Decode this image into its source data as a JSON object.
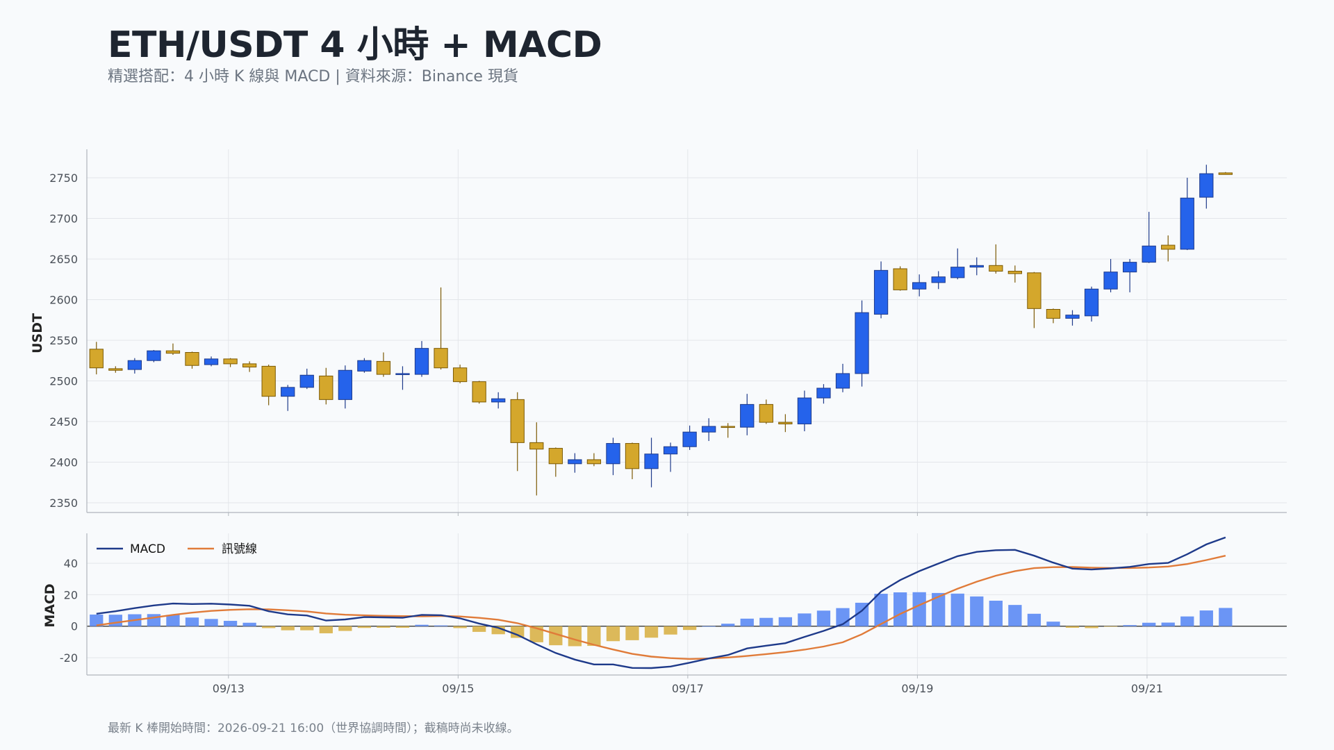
{
  "title": "ETH/USDT 4 小時 + MACD",
  "subtitle": "精選搭配：4 小時 K 線與 MACD | 資料來源：Binance 現貨",
  "footnote": "最新 K 棒開始時間：2026-09-21 16:00（世界協調時間）；截稿時尚未收線。",
  "colors": {
    "up": "#2563eb",
    "up_edge": "#1e3a8a",
    "down": "#d4a72c",
    "down_edge": "#7c5a05",
    "hist_pos": "#6b95f5",
    "hist_neg": "#dcb95a",
    "macd": "#1e3a8a",
    "signal": "#e07b39",
    "grid": "#e3e6ea",
    "axis": "#b0b5bc"
  },
  "chart_data": [
    {
      "type": "candlestick",
      "ylabel": "USDT",
      "ylim": [
        2338,
        2785
      ],
      "yticks": [
        2350,
        2400,
        2450,
        2500,
        2550,
        2600,
        2650,
        2700,
        2750
      ],
      "xlim": [
        -0.5,
        62.2
      ],
      "xticks": [
        {
          "label": "09/13",
          "at": 6.9
        },
        {
          "label": "09/15",
          "at": 18.9
        },
        {
          "label": "09/17",
          "at": 30.9
        },
        {
          "label": "09/19",
          "at": 42.9
        },
        {
          "label": "09/21",
          "at": 54.9
        }
      ],
      "candles": [
        [
          2539,
          2548,
          2508,
          2516
        ],
        [
          2515,
          2518,
          2510,
          2513
        ],
        [
          2514,
          2528,
          2509,
          2525
        ],
        [
          2525,
          2538,
          2523,
          2537
        ],
        [
          2537,
          2546,
          2532,
          2534
        ],
        [
          2535,
          2536,
          2515,
          2519
        ],
        [
          2520,
          2530,
          2518,
          2527
        ],
        [
          2527,
          2528,
          2517,
          2521
        ],
        [
          2521,
          2524,
          2511,
          2517
        ],
        [
          2518,
          2520,
          2470,
          2481
        ],
        [
          2481,
          2495,
          2463,
          2492
        ],
        [
          2492,
          2515,
          2490,
          2507
        ],
        [
          2506,
          2516,
          2471,
          2477
        ],
        [
          2477,
          2519,
          2466,
          2513
        ],
        [
          2512,
          2528,
          2510,
          2525
        ],
        [
          2524,
          2535,
          2505,
          2508
        ],
        [
          2509,
          2518,
          2489,
          2509
        ],
        [
          2508,
          2549,
          2505,
          2540
        ],
        [
          2540,
          2615,
          2514,
          2516
        ],
        [
          2516,
          2520,
          2497,
          2499
        ],
        [
          2499,
          2500,
          2472,
          2474
        ],
        [
          2474,
          2486,
          2466,
          2478
        ],
        [
          2477,
          2486,
          2389,
          2424
        ],
        [
          2424,
          2449,
          2359,
          2416
        ],
        [
          2417,
          2418,
          2382,
          2398
        ],
        [
          2398,
          2411,
          2387,
          2403
        ],
        [
          2403,
          2411,
          2395,
          2398
        ],
        [
          2398,
          2430,
          2384,
          2423
        ],
        [
          2423,
          2424,
          2379,
          2392
        ],
        [
          2392,
          2430,
          2369,
          2410
        ],
        [
          2410,
          2424,
          2388,
          2419
        ],
        [
          2419,
          2445,
          2415,
          2437
        ],
        [
          2437,
          2454,
          2426,
          2444
        ],
        [
          2444,
          2448,
          2430,
          2443
        ],
        [
          2443,
          2484,
          2433,
          2471
        ],
        [
          2471,
          2477,
          2447,
          2449
        ],
        [
          2449,
          2459,
          2437,
          2447
        ],
        [
          2447,
          2488,
          2438,
          2479
        ],
        [
          2479,
          2496,
          2472,
          2491
        ],
        [
          2491,
          2521,
          2486,
          2509
        ],
        [
          2509,
          2599,
          2493,
          2584
        ],
        [
          2582,
          2647,
          2577,
          2636
        ],
        [
          2638,
          2641,
          2611,
          2612
        ],
        [
          2613,
          2631,
          2604,
          2621
        ],
        [
          2621,
          2635,
          2613,
          2628
        ],
        [
          2627,
          2663,
          2625,
          2640
        ],
        [
          2640,
          2652,
          2630,
          2642
        ],
        [
          2642,
          2668,
          2632,
          2635
        ],
        [
          2635,
          2642,
          2621,
          2632
        ],
        [
          2633,
          2634,
          2565,
          2589
        ],
        [
          2588,
          2589,
          2571,
          2577
        ],
        [
          2577,
          2587,
          2568,
          2581
        ],
        [
          2580,
          2616,
          2573,
          2613
        ],
        [
          2613,
          2650,
          2609,
          2634
        ],
        [
          2634,
          2650,
          2609,
          2646
        ],
        [
          2646,
          2708,
          2645,
          2666
        ],
        [
          2667,
          2679,
          2647,
          2662
        ],
        [
          2662,
          2750,
          2661,
          2725
        ],
        [
          2726,
          2766,
          2712,
          2755
        ],
        [
          2756,
          2757,
          2754,
          2754
        ]
      ]
    },
    {
      "type": "line+bar",
      "ylabel": "MACD",
      "ylim": [
        -31,
        59
      ],
      "yticks": [
        -20,
        0,
        20,
        40
      ],
      "series": [
        {
          "name": "MACD",
          "values": [
            7.9,
            9.5,
            11.5,
            13.2,
            14.4,
            14.1,
            14.3,
            13.8,
            13,
            9.5,
            7.5,
            6.8,
            3.6,
            4.3,
            5.8,
            5.6,
            5.4,
            7.2,
            7,
            5,
            1.7,
            -1,
            -5.5,
            -11.5,
            -17,
            -21.2,
            -24.3,
            -24.3,
            -26.5,
            -26.6,
            -25.6,
            -23.2,
            -20.5,
            -18.3,
            -14.1,
            -12.4,
            -10.8,
            -6.8,
            -3,
            1.3,
            9.8,
            22,
            29.3,
            35,
            39.8,
            44.5,
            47.2,
            48.3,
            48.5,
            44.8,
            40.4,
            36.6,
            36,
            36.7,
            37.7,
            39.5,
            40.2,
            45.7,
            52,
            56.4
          ]
        },
        {
          "name": "訊號線",
          "values": [
            0.5,
            2.2,
            3.9,
            5.5,
            7.2,
            8.6,
            9.7,
            10.4,
            10.8,
            10.7,
            10.1,
            9.4,
            8.1,
            7.3,
            6.9,
            6.6,
            6.4,
            6.3,
            6.5,
            6.2,
            5.3,
            4.1,
            1.9,
            -1.3,
            -4.9,
            -8.5,
            -11.8,
            -14.8,
            -17.6,
            -19.3,
            -20.3,
            -20.8,
            -20.5,
            -19.9,
            -18.9,
            -17.7,
            -16.5,
            -14.9,
            -12.9,
            -10.2,
            -5.1,
            1.4,
            7.8,
            13.4,
            18.7,
            23.8,
            28.3,
            32.1,
            35,
            36.9,
            37.5,
            37.6,
            37.2,
            37,
            37,
            37.3,
            37.9,
            39.5,
            42,
            44.8
          ]
        },
        {
          "name": "histogram",
          "values": [
            7.4,
            7.3,
            7.6,
            7.7,
            7.2,
            5.5,
            4.6,
            3.4,
            2.2,
            -1.2,
            -2.6,
            -2.6,
            -4.5,
            -3,
            -1.1,
            -1,
            -1,
            0.9,
            0.5,
            -1.2,
            -3.6,
            -5.1,
            -7.4,
            -10.2,
            -12.1,
            -12.7,
            -12.5,
            -9.5,
            -8.9,
            -7.3,
            -5.3,
            -2.4,
            0,
            1.6,
            4.8,
            5.3,
            5.7,
            8.1,
            9.9,
            11.5,
            14.9,
            20.6,
            21.5,
            21.6,
            21.1,
            20.7,
            18.9,
            16.2,
            13.5,
            7.9,
            2.9,
            -1,
            -1.2,
            -0.3,
            0.7,
            2.2,
            2.3,
            6.2,
            10,
            11.6
          ]
        }
      ]
    }
  ]
}
